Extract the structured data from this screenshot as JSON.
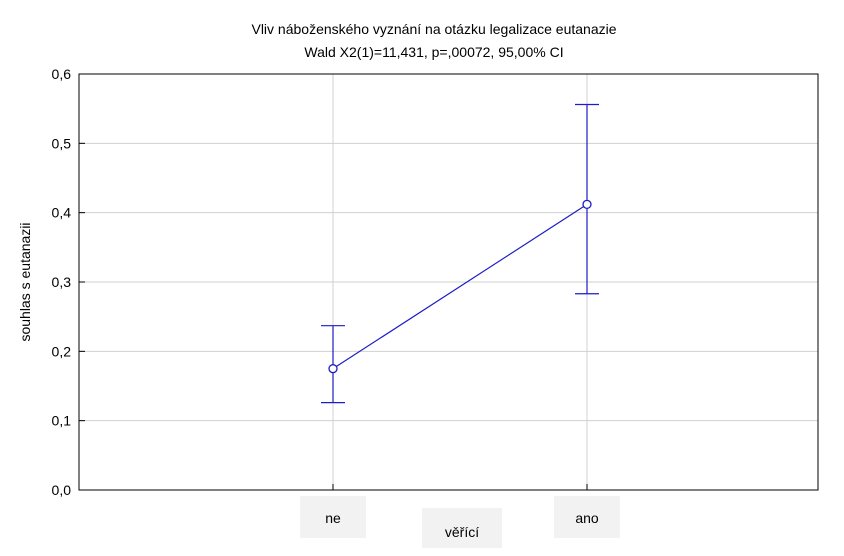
{
  "chart_data": {
    "type": "line",
    "title": "Vliv náboženského vyznání na otázku legalizace eutanazie",
    "subtitle": "Wald  X2(1)=11,431, p=,00072, 95,00% CI",
    "xlabel": "věřící",
    "ylabel": "souhlas s eutanazii",
    "categories": [
      "ne",
      "ano"
    ],
    "values": [
      0.175,
      0.412
    ],
    "ci_lower": [
      0.126,
      0.283
    ],
    "ci_upper": [
      0.237,
      0.556
    ],
    "ylim": [
      0.0,
      0.6
    ],
    "yticks": [
      0.0,
      0.1,
      0.2,
      0.3,
      0.4,
      0.5,
      0.6
    ],
    "ytick_labels": [
      "0,0",
      "0,1",
      "0,2",
      "0,3",
      "0,4",
      "0,5",
      "0,6"
    ],
    "grid": true,
    "colors": {
      "series": "#1c1cc8",
      "grid": "#d0d0d0",
      "frame": "#000000"
    }
  }
}
